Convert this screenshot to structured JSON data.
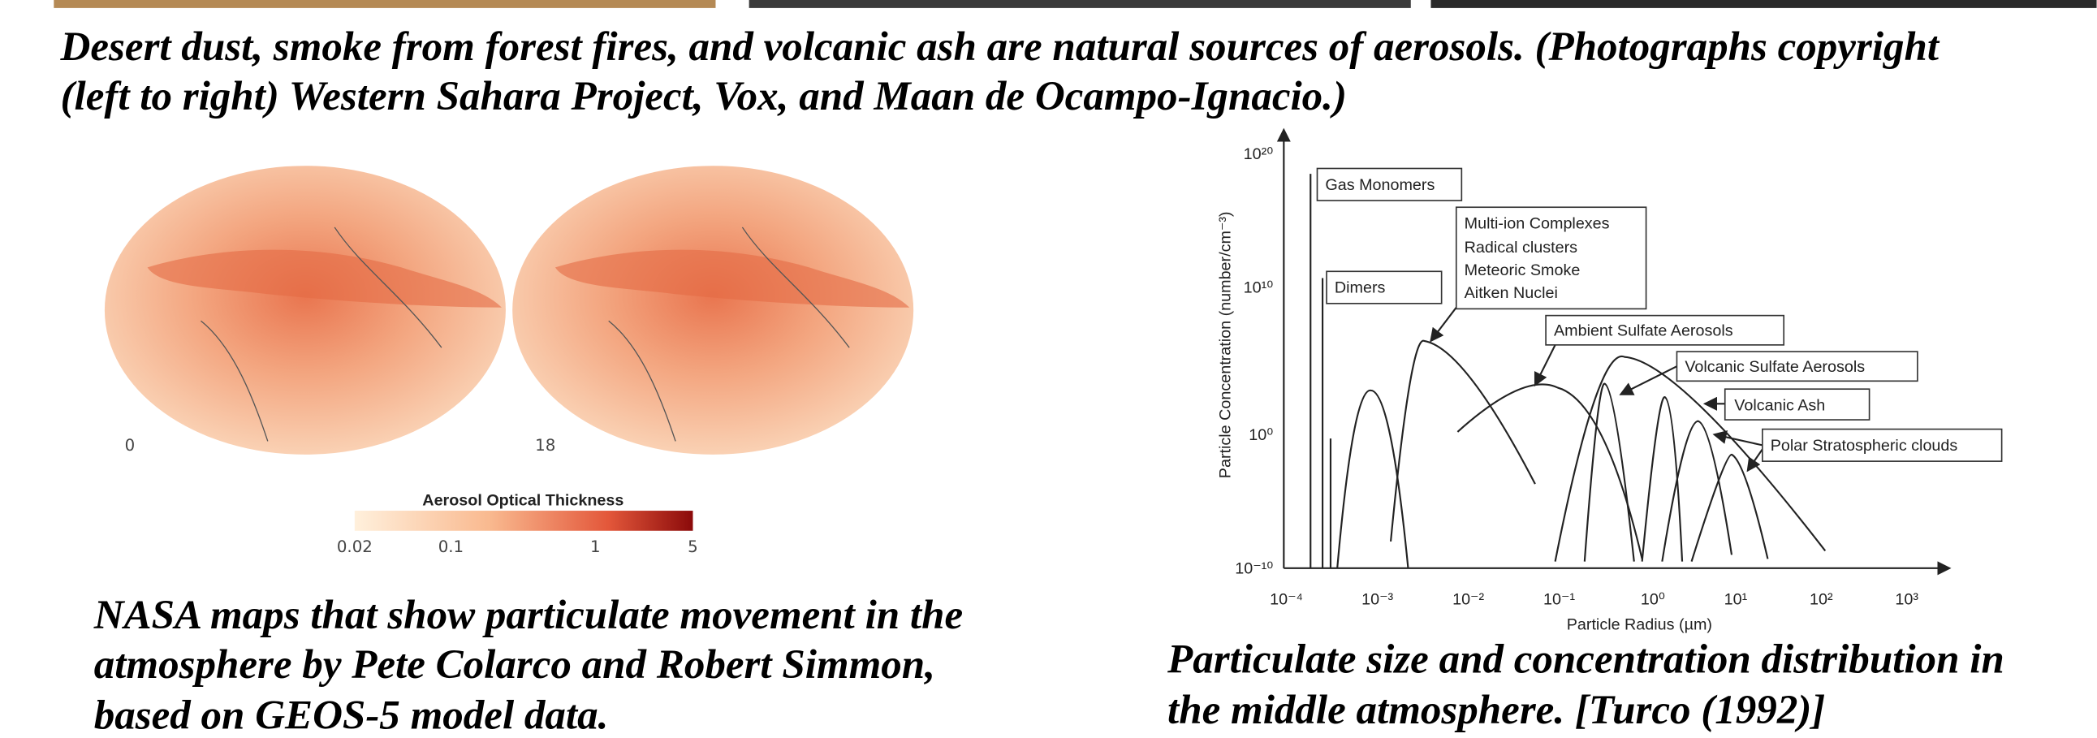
{
  "photo_caption": {
    "lines": [
      "Desert dust, smoke from forest fires, and volcanic ash are natural sources of aerosols. (Photographs copyright",
      "(left to right) Western Sahara Project, Vox, and Maan de Ocampo-Ignacio.)"
    ]
  },
  "map_figure": {
    "globe_labels": [
      "0",
      "18"
    ],
    "colorbar_title": "Aerosol Optical Thickness",
    "colorbar_ticks": [
      "0.02",
      "0.1",
      "1",
      "5"
    ],
    "caption": {
      "lines": [
        "NASA maps that show particulate movement in the",
        "atmosphere by Pete Colarco and Robert Simmon,",
        "based on GEOS-5 model data."
      ]
    }
  },
  "size_figure": {
    "y_label": "Particle Concentration (number/cm⁻³)",
    "x_label": "Particle Radius (µm)",
    "y_ticks": [
      "10²⁰",
      "10¹⁰",
      "10⁰",
      "10⁻¹⁰"
    ],
    "x_ticks": [
      "10⁻⁴",
      "10⁻³",
      "10⁻²",
      "10⁻¹",
      "10⁰",
      "10¹",
      "10²",
      "10³"
    ],
    "annotations": {
      "gas_monomers": "Gas Monomers",
      "dimers": "Dimers",
      "complexes": [
        "Multi-ion Complexes",
        "Radical clusters",
        "Meteoric Smoke",
        "Aitken Nuclei"
      ],
      "ambient_sulfate": "Ambient Sulfate Aerosols",
      "volcanic_sulfate": "Volcanic Sulfate Aerosols",
      "volcanic_ash": "Volcanic Ash",
      "polar_clouds": "Polar Stratospheric clouds"
    },
    "caption": {
      "lines": [
        "Particulate size and concentration distribution in",
        "the middle atmosphere. [Turco (1992)]"
      ]
    }
  }
}
